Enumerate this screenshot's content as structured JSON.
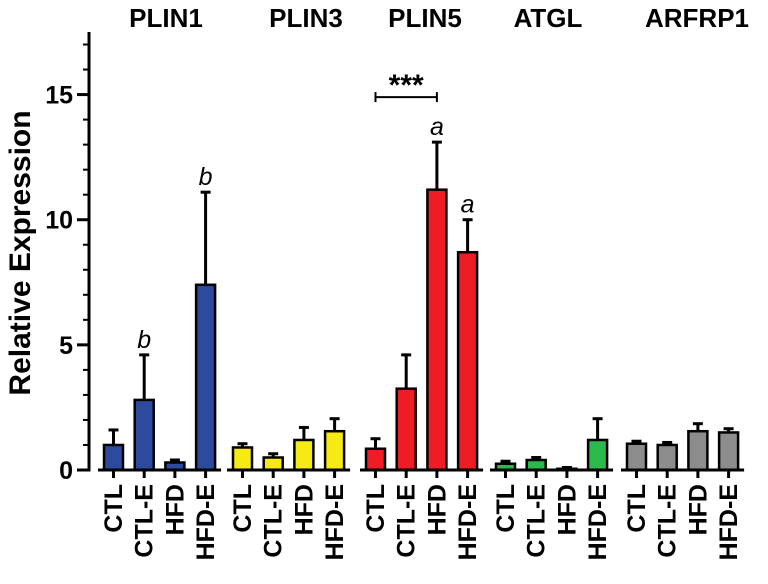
{
  "chart_data": {
    "type": "bar",
    "ylabel": "Relative  Expression",
    "ylim": [
      0,
      17.5
    ],
    "yticks": [
      0,
      5,
      10,
      15
    ],
    "error_bars": "upper",
    "groups": [
      {
        "name": "PLIN1",
        "color": "#2e4a9e",
        "bars": [
          {
            "label": "CTL",
            "value": 1.0,
            "error": 0.6
          },
          {
            "label": "CTL-E",
            "value": 2.8,
            "error": 1.8,
            "annotation": "b"
          },
          {
            "label": "HFD",
            "value": 0.3,
            "error": 0.1
          },
          {
            "label": "HFD-E",
            "value": 7.4,
            "error": 3.7,
            "annotation": "b"
          }
        ]
      },
      {
        "name": "PLIN3",
        "color": "#f5ea14",
        "bars": [
          {
            "label": "CTL",
            "value": 0.9,
            "error": 0.15
          },
          {
            "label": "CTL-E",
            "value": 0.5,
            "error": 0.15
          },
          {
            "label": "HFD",
            "value": 1.2,
            "error": 0.5
          },
          {
            "label": "HFD-E",
            "value": 1.55,
            "error": 0.5
          }
        ]
      },
      {
        "name": "PLIN5",
        "color": "#ee1c24",
        "bars": [
          {
            "label": "CTL",
            "value": 0.85,
            "error": 0.4
          },
          {
            "label": "CTL-E",
            "value": 3.25,
            "error": 1.35
          },
          {
            "label": "HFD",
            "value": 11.2,
            "error": 1.9,
            "annotation": "a"
          },
          {
            "label": "HFD-E",
            "value": 8.7,
            "error": 1.3,
            "annotation": "a"
          }
        ]
      },
      {
        "name": "ATGL",
        "color": "#2db84b",
        "bars": [
          {
            "label": "CTL",
            "value": 0.25,
            "error": 0.1
          },
          {
            "label": "CTL-E",
            "value": 0.4,
            "error": 0.1
          },
          {
            "label": "HFD",
            "value": 0.05,
            "error": 0.05
          },
          {
            "label": "HFD-E",
            "value": 1.2,
            "error": 0.85
          }
        ]
      },
      {
        "name": "ARFRP1",
        "color": "#8c8c8c",
        "bars": [
          {
            "label": "CTL",
            "value": 1.05,
            "error": 0.1
          },
          {
            "label": "CTL-E",
            "value": 1.0,
            "error": 0.1
          },
          {
            "label": "HFD",
            "value": 1.55,
            "error": 0.3
          },
          {
            "label": "HFD-E",
            "value": 1.5,
            "error": 0.15
          }
        ]
      }
    ],
    "brackets": [
      {
        "group": 2,
        "from": 0,
        "to": 2,
        "label": "***",
        "y": 14.9
      }
    ]
  }
}
